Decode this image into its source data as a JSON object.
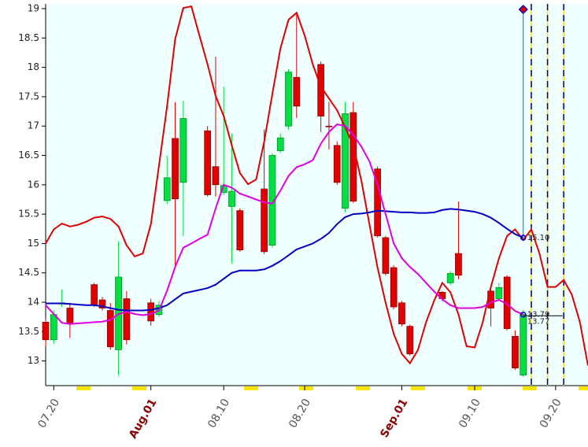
{
  "chart_data": {
    "type": "candlestick",
    "x": [
      "07.19",
      "07.20",
      "07.21",
      "07.22",
      "07.25",
      "07.26",
      "07.27",
      "07.28",
      "07.29",
      "08.01",
      "08.02",
      "08.03",
      "08.04",
      "08.05",
      "08.08",
      "08.09",
      "08.10",
      "08.11",
      "08.12",
      "08.15",
      "08.16",
      "08.17",
      "08.18",
      "08.19",
      "08.22",
      "08.23",
      "08.24",
      "08.25",
      "08.26",
      "08.29",
      "08.30",
      "08.31",
      "09.01",
      "09.02",
      "09.06",
      "09.07",
      "09.08",
      "09.12",
      "09.13",
      "09.14",
      "09.15",
      "09.16"
    ],
    "open": [
      13.66,
      13.36,
      13.97,
      13.9,
      14.3,
      14.04,
      13.86,
      13.19,
      14.06,
      13.99,
      13.79,
      15.73,
      16.79,
      16.04,
      16.92,
      16.31,
      15.87,
      15.63,
      15.56,
      15.93,
      14.97,
      16.58,
      17.0,
      17.83,
      18.05,
      17.0,
      16.67,
      15.6,
      17.23,
      16.27,
      15.1,
      14.59,
      13.99,
      13.59,
      14.17,
      14.33,
      14.83,
      14.19,
      14.06,
      14.43,
      13.42,
      12.76
    ],
    "high": [
      13.72,
      13.86,
      14.22,
      13.99,
      14.33,
      14.09,
      13.99,
      15.04,
      14.19,
      14.06,
      14.02,
      16.5,
      17.41,
      17.43,
      17.0,
      18.18,
      17.67,
      16.87,
      15.6,
      16.94,
      16.54,
      16.87,
      17.97,
      18.91,
      18.1,
      17.41,
      16.74,
      17.41,
      17.41,
      16.31,
      15.13,
      14.63,
      14.02,
      13.62,
      14.19,
      14.53,
      15.71,
      14.26,
      14.33,
      14.46,
      13.52,
      13.86
    ],
    "low": [
      13.25,
      13.29,
      13.92,
      13.39,
      13.92,
      13.86,
      13.19,
      12.75,
      13.28,
      13.6,
      13.75,
      15.67,
      14.59,
      15.13,
      15.8,
      15.8,
      15.83,
      14.66,
      14.86,
      14.82,
      14.93,
      16.54,
      16.94,
      17.14,
      16.9,
      16.6,
      16.0,
      15.53,
      15.69,
      15.1,
      14.46,
      13.88,
      13.59,
      13.09,
      14.02,
      14.29,
      14.39,
      13.59,
      14.02,
      13.52,
      12.85,
      12.73
    ],
    "close": [
      13.36,
      13.79,
      13.99,
      13.64,
      13.95,
      13.9,
      13.24,
      14.43,
      13.36,
      13.68,
      13.95,
      16.12,
      15.76,
      17.13,
      15.83,
      16.0,
      15.99,
      15.89,
      14.89,
      14.86,
      16.5,
      16.8,
      17.92,
      17.34,
      17.17,
      16.99,
      16.04,
      17.21,
      15.72,
      15.13,
      14.49,
      13.92,
      13.63,
      13.12,
      14.06,
      14.49,
      14.46,
      13.9,
      14.25,
      13.55,
      12.88,
      13.79
    ],
    "up_color": "#00e040",
    "down_color": "#e00000",
    "lines": [
      {
        "color": "#e00000",
        "x": [
          "07.19",
          "07.20",
          "07.21",
          "07.22",
          "07.23",
          "07.24",
          "07.25",
          "07.26",
          "07.27",
          "07.28",
          "07.29",
          "07.30",
          "07.31",
          "08.01",
          "08.02",
          "08.03",
          "08.04",
          "08.05",
          "08.06",
          "08.07",
          "08.08",
          "08.09",
          "08.10",
          "08.11",
          "08.12",
          "08.13",
          "08.14",
          "08.15",
          "08.16",
          "08.17",
          "08.18",
          "08.19",
          "08.20",
          "08.21",
          "08.22",
          "08.23",
          "08.24",
          "08.25",
          "08.26",
          "08.27",
          "08.28",
          "08.29",
          "08.30",
          "08.31",
          "09.01",
          "09.02",
          "09.03",
          "09.04",
          "09.05",
          "09.06",
          "09.07",
          "09.08",
          "09.09",
          "09.10",
          "09.11",
          "09.12",
          "09.13",
          "09.14",
          "09.15",
          "09.16",
          "09.17",
          "09.18",
          "09.19",
          "09.20",
          "09.21",
          "09.22",
          "09.23",
          "09.24"
        ],
        "values": [
          15.0,
          15.24,
          15.34,
          15.29,
          15.32,
          15.37,
          15.44,
          15.46,
          15.42,
          15.29,
          14.97,
          14.78,
          14.83,
          15.33,
          16.33,
          17.34,
          18.48,
          19.01,
          19.04,
          18.54,
          18.05,
          17.51,
          17.17,
          16.67,
          16.2,
          16.01,
          16.09,
          16.74,
          17.54,
          18.32,
          18.81,
          18.93,
          18.54,
          18.05,
          17.67,
          17.47,
          17.27,
          16.98,
          16.67,
          16.07,
          15.33,
          14.59,
          13.99,
          13.46,
          13.12,
          12.96,
          13.19,
          13.66,
          14.03,
          14.33,
          14.17,
          13.79,
          13.25,
          13.23,
          13.66,
          14.26,
          14.75,
          15.13,
          15.24,
          15.06,
          15.24,
          14.83,
          14.26,
          14.26,
          14.38,
          14.13,
          13.66,
          12.92
        ]
      },
      {
        "color": "#0000c0",
        "x": [
          "07.19",
          "07.20",
          "07.21",
          "07.22",
          "07.23",
          "07.24",
          "07.25",
          "07.26",
          "07.27",
          "07.28",
          "07.29",
          "07.30",
          "07.31",
          "08.01",
          "08.02",
          "08.03",
          "08.04",
          "08.05",
          "08.06",
          "08.07",
          "08.08",
          "08.09",
          "08.10",
          "08.11",
          "08.12",
          "08.13",
          "08.14",
          "08.15",
          "08.16",
          "08.17",
          "08.18",
          "08.19",
          "08.20",
          "08.21",
          "08.22",
          "08.23",
          "08.24",
          "08.25",
          "08.26",
          "08.27",
          "08.28",
          "08.29",
          "08.30",
          "08.31",
          "09.01",
          "09.02",
          "09.03",
          "09.04",
          "09.05",
          "09.06",
          "09.07",
          "09.08",
          "09.09",
          "09.10",
          "09.11",
          "09.12",
          "09.13",
          "09.14",
          "09.15",
          "09.16"
        ],
        "values": [
          13.98,
          13.98,
          13.98,
          13.97,
          13.96,
          13.95,
          13.95,
          13.93,
          13.9,
          13.87,
          13.86,
          13.86,
          13.86,
          13.87,
          13.9,
          13.95,
          14.05,
          14.15,
          14.18,
          14.21,
          14.24,
          14.3,
          14.4,
          14.5,
          14.54,
          14.54,
          14.54,
          14.56,
          14.62,
          14.7,
          14.8,
          14.9,
          14.95,
          15.0,
          15.08,
          15.18,
          15.33,
          15.45,
          15.5,
          15.51,
          15.53,
          15.56,
          15.55,
          15.54,
          15.53,
          15.53,
          15.52,
          15.52,
          15.53,
          15.57,
          15.59,
          15.58,
          15.56,
          15.54,
          15.5,
          15.44,
          15.35,
          15.25,
          15.16,
          15.1
        ]
      },
      {
        "color": "#e000e0",
        "x": [
          "07.19",
          "07.20",
          "07.21",
          "07.22",
          "07.23",
          "07.24",
          "07.25",
          "07.26",
          "07.27",
          "07.28",
          "07.29",
          "07.30",
          "07.31",
          "08.01",
          "08.02",
          "08.03",
          "08.04",
          "08.05",
          "08.06",
          "08.07",
          "08.08",
          "08.09",
          "08.10",
          "08.11",
          "08.12",
          "08.13",
          "08.14",
          "08.15",
          "08.16",
          "08.17",
          "08.18",
          "08.19",
          "08.20",
          "08.21",
          "08.22",
          "08.23",
          "08.24",
          "08.25",
          "08.26",
          "08.27",
          "08.28",
          "08.29",
          "08.30",
          "08.31",
          "09.01",
          "09.02",
          "09.03",
          "09.04",
          "09.05",
          "09.06",
          "09.07",
          "09.08",
          "09.09",
          "09.10",
          "09.11",
          "09.12",
          "09.13",
          "09.14",
          "09.15",
          "09.16"
        ],
        "values": [
          13.95,
          13.8,
          13.65,
          13.63,
          13.64,
          13.65,
          13.66,
          13.67,
          13.7,
          13.8,
          13.84,
          13.8,
          13.78,
          13.8,
          13.86,
          14.2,
          14.6,
          14.93,
          15.0,
          15.08,
          15.15,
          15.6,
          16.0,
          15.95,
          15.85,
          15.8,
          15.75,
          15.7,
          15.68,
          15.9,
          16.15,
          16.3,
          16.35,
          16.42,
          16.7,
          16.9,
          17.03,
          17.0,
          16.85,
          16.65,
          16.4,
          16.0,
          15.5,
          15.0,
          14.75,
          14.6,
          14.48,
          14.33,
          14.18,
          14.05,
          13.95,
          13.9,
          13.9,
          13.9,
          13.92,
          14.0,
          14.04,
          13.97,
          13.85,
          13.79
        ]
      }
    ],
    "price_labels": [
      {
        "value": 15.1,
        "label": "15.10"
      },
      {
        "value": 13.79,
        "label": "13.79"
      },
      {
        "value": 13.77,
        "label": "13.77"
      }
    ],
    "cursor_color": "#1a6fa0",
    "future_lines": [
      "09.17",
      "09.19",
      "09.21"
    ],
    "xlim": [
      "07.19",
      "09.24"
    ],
    "ylim": [
      12.58,
      19.08
    ],
    "yticks": [
      13,
      13.5,
      14,
      14.5,
      15,
      15.5,
      16,
      16.5,
      17,
      17.5,
      18,
      18.5,
      19
    ],
    "xticks": [
      "07.20",
      {
        "value": "08.01",
        "label": "Aug.01"
      },
      "08.10",
      "08.20",
      {
        "value": "09.01",
        "label": "Sep.01"
      },
      "09.10",
      "09.20"
    ],
    "xtick_highlight_color": "#8b0000",
    "background": "#f0ffff"
  }
}
